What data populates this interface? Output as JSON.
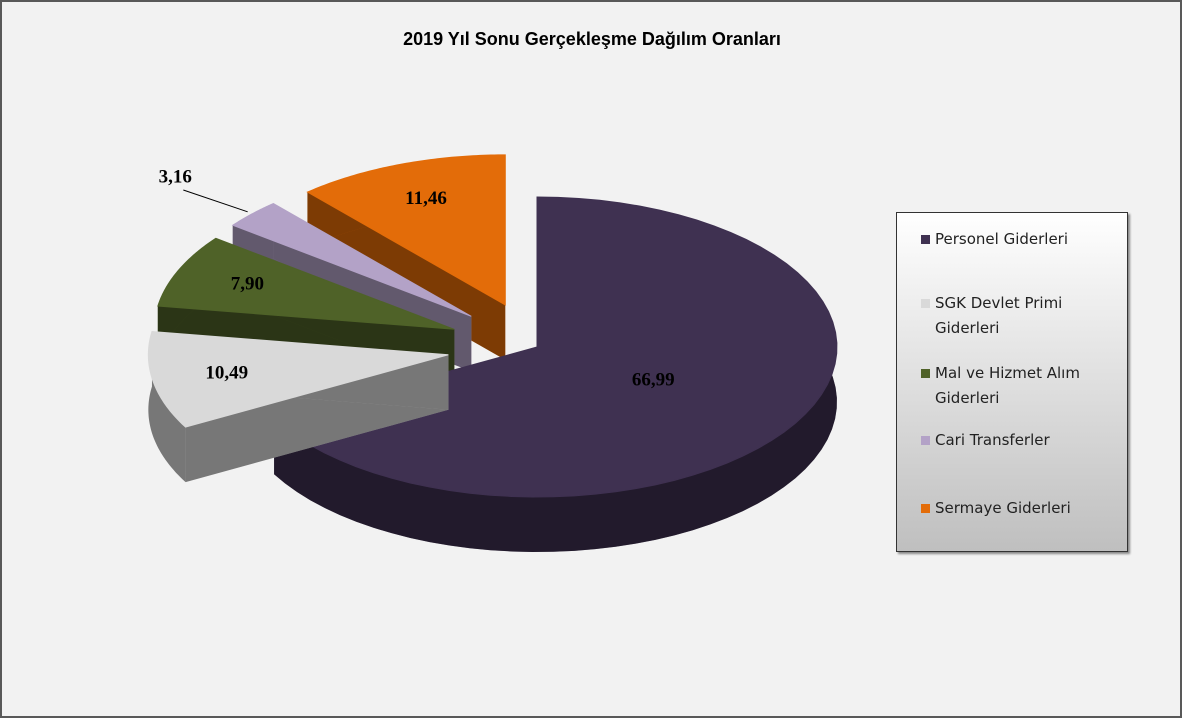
{
  "chart_data": {
    "type": "pie3d",
    "title": "2019 Yıl Sonu Gerçekleşme Dağılım Oranları",
    "categories": [
      "Personel Giderleri",
      "SGK Devlet Primi Giderleri",
      "Mal ve Hizmet Alım Giderleri",
      "Cari Transferler",
      "Sermaye Giderleri"
    ],
    "values": [
      66.99,
      10.49,
      7.9,
      3.16,
      11.46
    ],
    "value_labels": [
      "66,99",
      "10,49",
      "7,90",
      "3,16",
      "11,46"
    ],
    "colors": [
      "#3f3151",
      "#d9d9d9",
      "#4f6228",
      "#b3a2c7",
      "#e36c09"
    ],
    "legend": "right"
  }
}
